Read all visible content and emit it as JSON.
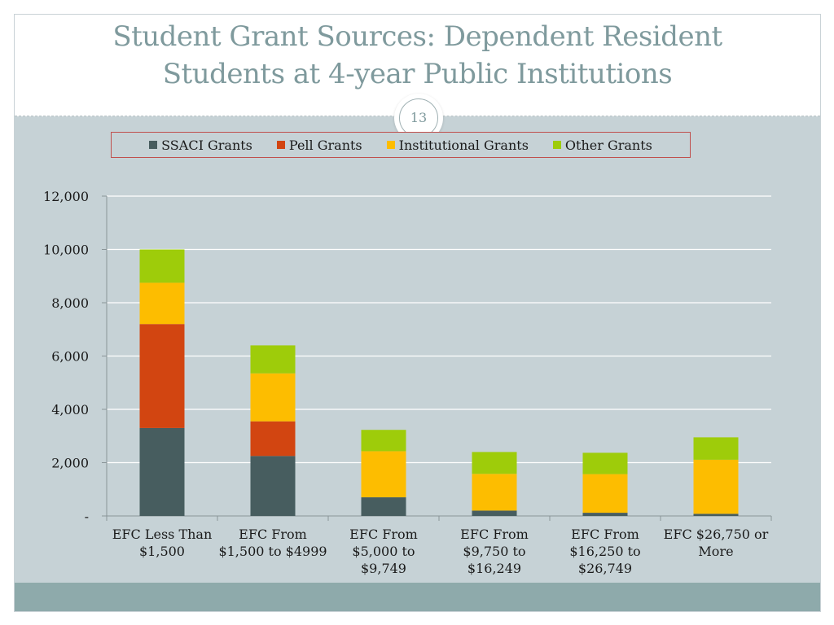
{
  "slide": {
    "title_line1": "Student Grant Sources: Dependent Resident",
    "title_line2": "Students at 4-year Public Institutions",
    "page_number": "13"
  },
  "chart_data": {
    "type": "bar",
    "stacked": true,
    "title": "",
    "xlabel": "",
    "ylabel": "",
    "ylim": [
      0,
      12000
    ],
    "y_ticks": [
      {
        "value": 0,
        "label": "-"
      },
      {
        "value": 2000,
        "label": "2,000"
      },
      {
        "value": 4000,
        "label": "4,000"
      },
      {
        "value": 6000,
        "label": "6,000"
      },
      {
        "value": 8000,
        "label": "8,000"
      },
      {
        "value": 10000,
        "label": "10,000"
      },
      {
        "value": 12000,
        "label": "12,000"
      }
    ],
    "grid": true,
    "legend_position": "top",
    "categories": [
      [
        "EFC Less Than",
        "$1,500"
      ],
      [
        "EFC From",
        "$1,500 to $4999"
      ],
      [
        "EFC From",
        "$5,000 to",
        "$9,749"
      ],
      [
        "EFC From",
        "$9,750 to",
        "$16,249"
      ],
      [
        "EFC From",
        "$16,250 to",
        "$26,749"
      ],
      [
        "EFC $26,750 or",
        "More"
      ]
    ],
    "series": [
      {
        "name": "SSACI Grants",
        "color": "#475d5f",
        "values": [
          3300,
          2250,
          700,
          200,
          120,
          80
        ]
      },
      {
        "name": "Pell Grants",
        "color": "#d24511",
        "values": [
          3900,
          1300,
          0,
          0,
          0,
          0
        ]
      },
      {
        "name": "Institutional Grants",
        "color": "#fdbd00",
        "values": [
          1550,
          1800,
          1730,
          1380,
          1450,
          2030
        ]
      },
      {
        "name": "Other Grants",
        "color": "#9ecc0a",
        "values": [
          1250,
          1050,
          800,
          820,
          800,
          840
        ]
      }
    ]
  }
}
